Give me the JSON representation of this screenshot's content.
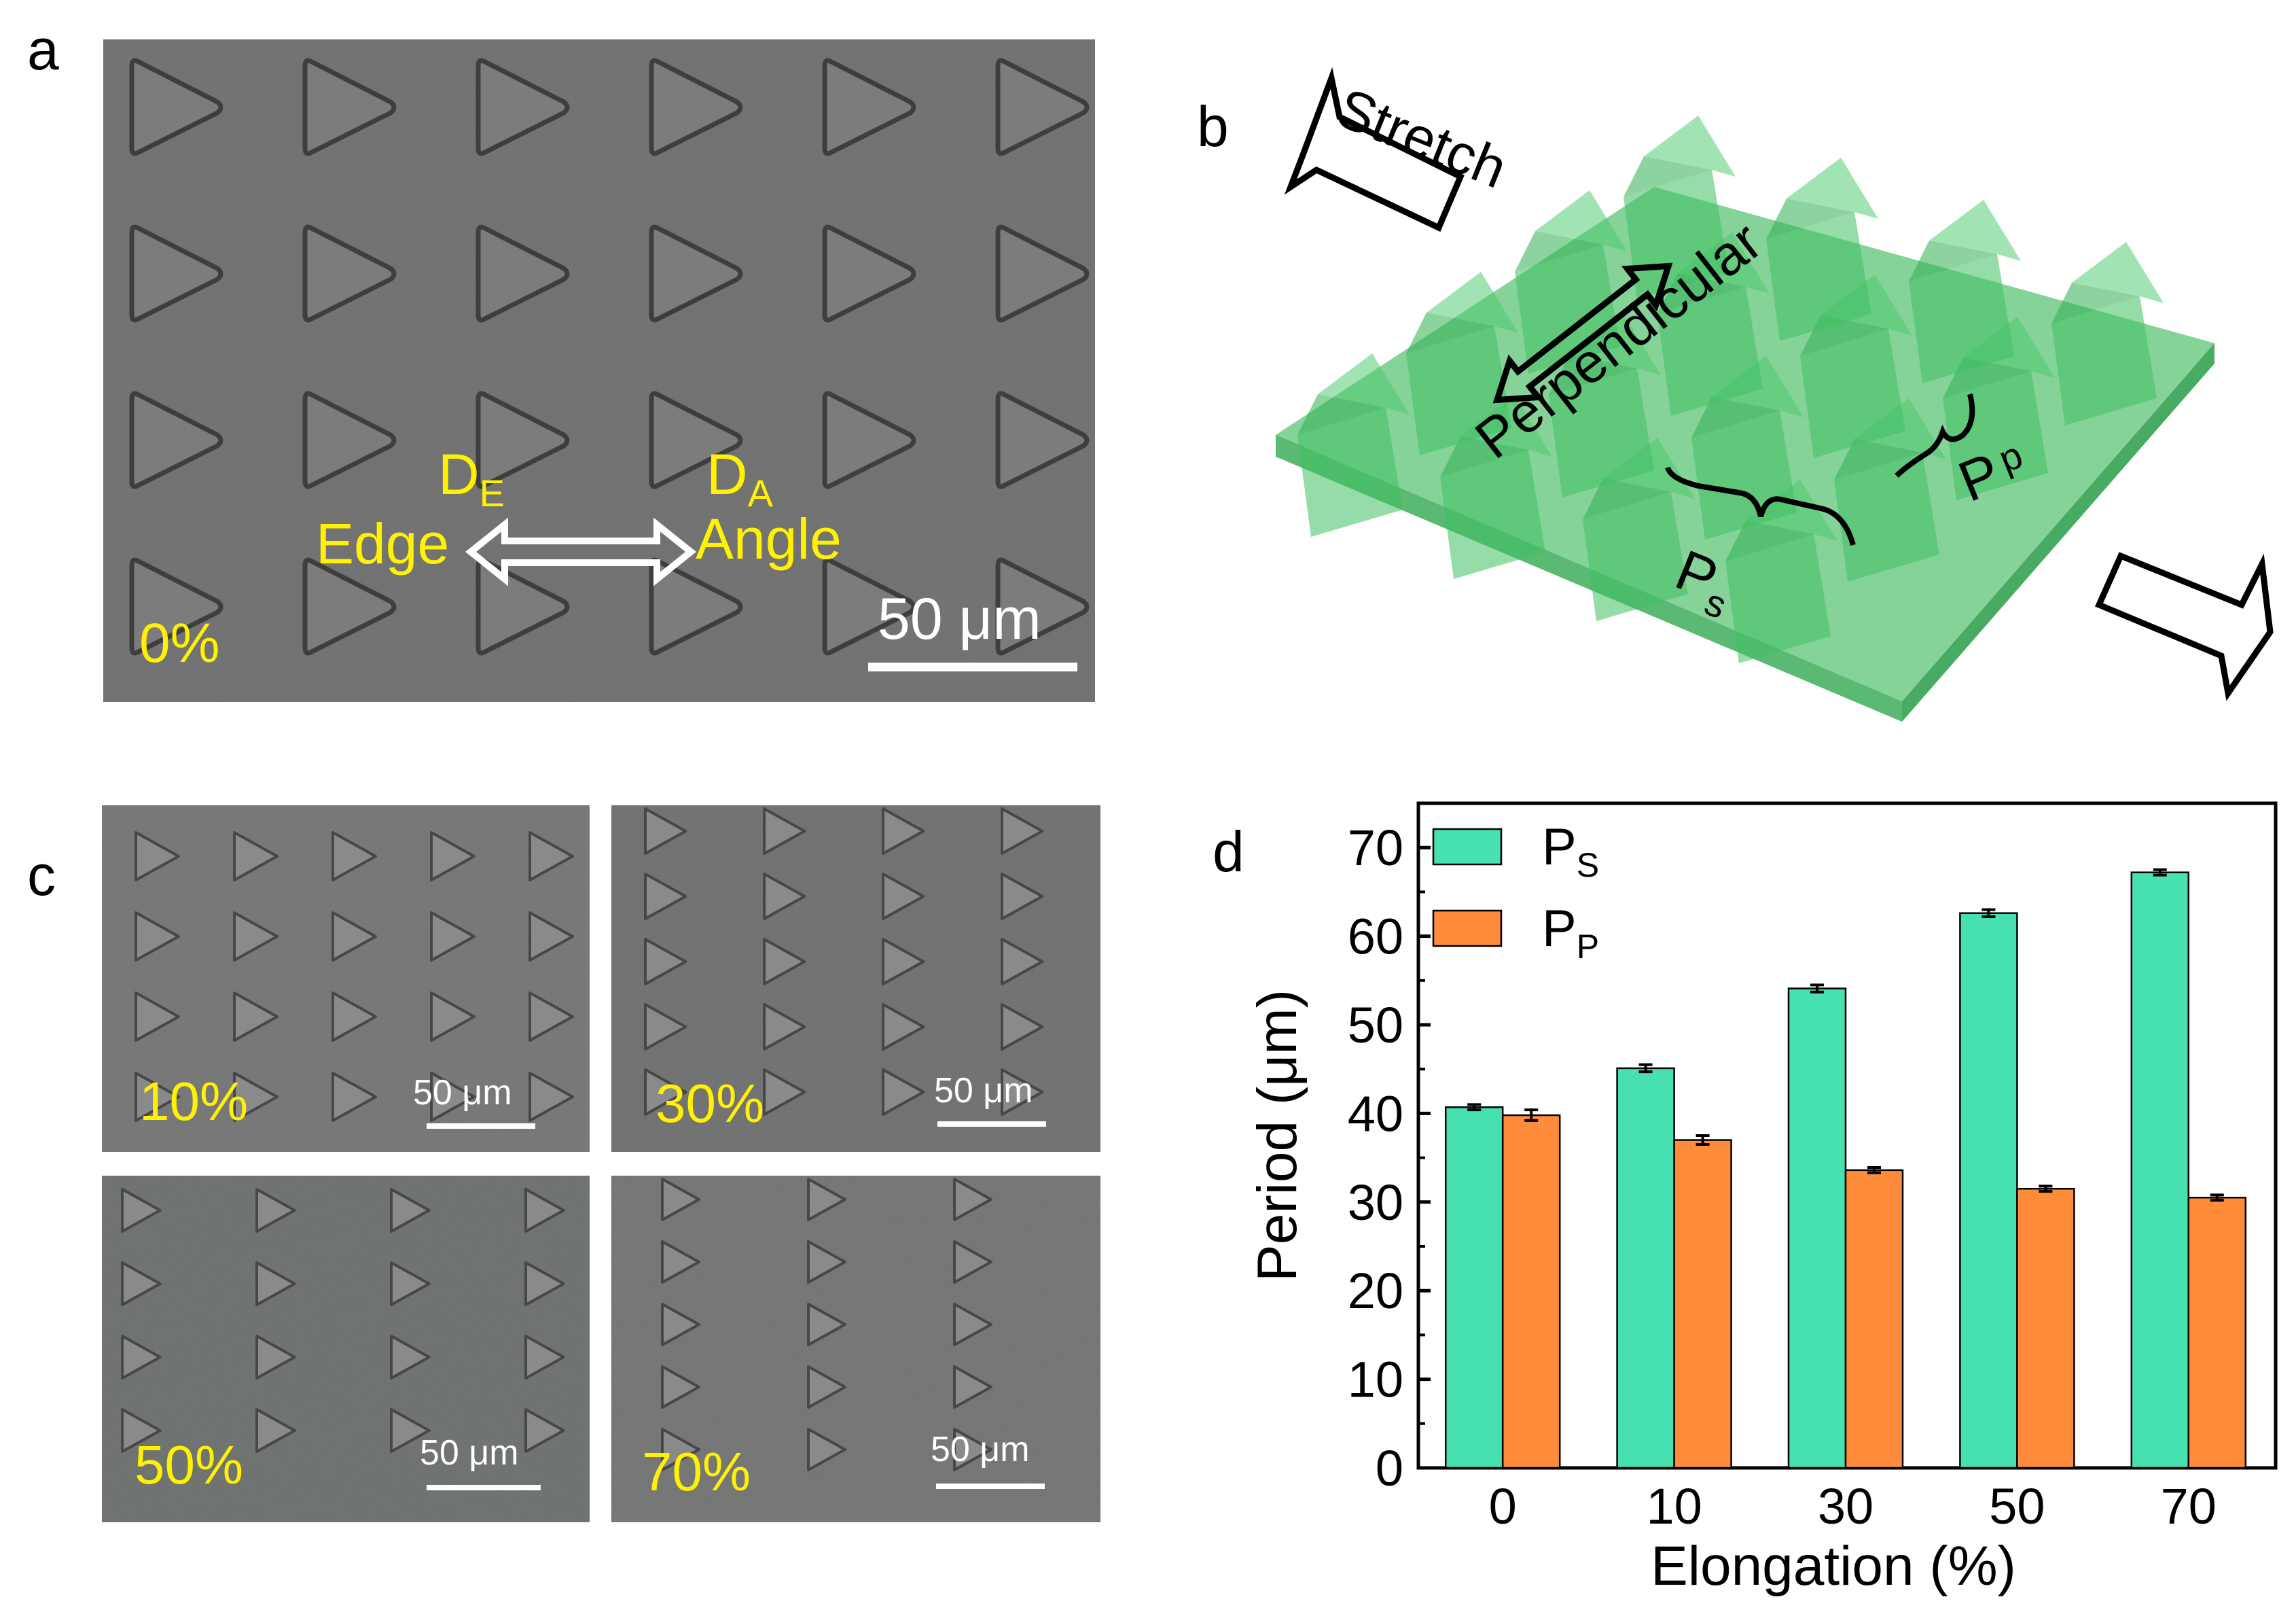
{
  "panel_a": {
    "label": "a",
    "strain": "0%",
    "scale_bar": "50 μm",
    "edge": {
      "letter": "D",
      "sub": "E",
      "word": "Edge"
    },
    "angle": {
      "letter": "D",
      "sub": "A",
      "word": "Angle"
    }
  },
  "panel_b": {
    "label": "b",
    "stretch": "Stretch",
    "perpendicular": "Perpendicular",
    "ps": {
      "letter": "P",
      "sub": "s"
    },
    "pp": {
      "letter": "P",
      "sub": "p"
    }
  },
  "panel_c": {
    "label": "c",
    "images": [
      {
        "strain": "10%",
        "scale_bar": "50 μm"
      },
      {
        "strain": "30%",
        "scale_bar": "50 μm"
      },
      {
        "strain": "50%",
        "scale_bar": "50 μm"
      },
      {
        "strain": "70%",
        "scale_bar": "50 μm"
      }
    ]
  },
  "panel_d": {
    "label": "d"
  },
  "colors": {
    "ps": "#47E0B0",
    "pp": "#FF8C3A",
    "sem_bg": "#6b6b6b",
    "label_yellow": "#FFF200",
    "film": "#5cc878"
  },
  "chart_data": {
    "type": "bar",
    "title": "",
    "xlabel": "Elongation (%)",
    "ylabel": "Period (μm)",
    "categories": [
      "0",
      "10",
      "30",
      "50",
      "70"
    ],
    "ylim": [
      0,
      75
    ],
    "yticks": [
      0,
      10,
      20,
      30,
      40,
      50,
      60,
      70
    ],
    "legend_position": "top-left",
    "series": [
      {
        "name": "PS",
        "letter": "P",
        "sub": "S",
        "color": "#47E0B0",
        "values": [
          40.7,
          45.1,
          54.1,
          62.6,
          67.2
        ],
        "errors": [
          0.3,
          0.4,
          0.4,
          0.4,
          0.3
        ]
      },
      {
        "name": "PP",
        "letter": "P",
        "sub": "P",
        "color": "#FF8C3A",
        "values": [
          39.8,
          37.0,
          33.6,
          31.5,
          30.5
        ],
        "errors": [
          0.6,
          0.5,
          0.3,
          0.3,
          0.3
        ]
      }
    ]
  }
}
